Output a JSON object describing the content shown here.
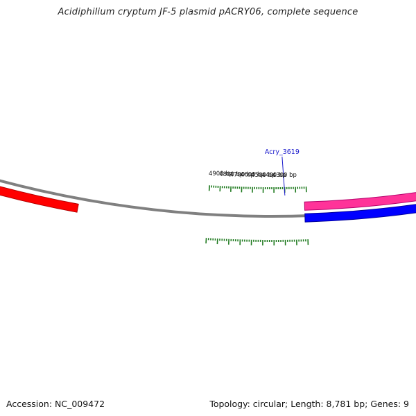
{
  "title": "Acidiphilium cryptum JF-5 plasmid pACRY06, complete sequence",
  "footer": {
    "accession_label": "Accession: NC_009472",
    "summary": "Topology: circular; Length: 8,781 bp; Genes: 9"
  },
  "plasmid": {
    "length_bp": 8781,
    "topology": "circular"
  },
  "tick_labels": [
    "4900 bp",
    "4800 bp",
    "4700 bp",
    "4600 bp",
    "4500 bp",
    "4400 bp",
    "4300 bp"
  ],
  "genes": [
    {
      "label": "Acry_3619",
      "strand": "plus"
    }
  ],
  "colors": {
    "backbone": "#808080",
    "ticks": "#1f7a1f",
    "gene_red": "#ff0000",
    "gene_pink": "#ff3399",
    "gene_blue": "#0000ff",
    "gene_label": "#1a1acc"
  }
}
